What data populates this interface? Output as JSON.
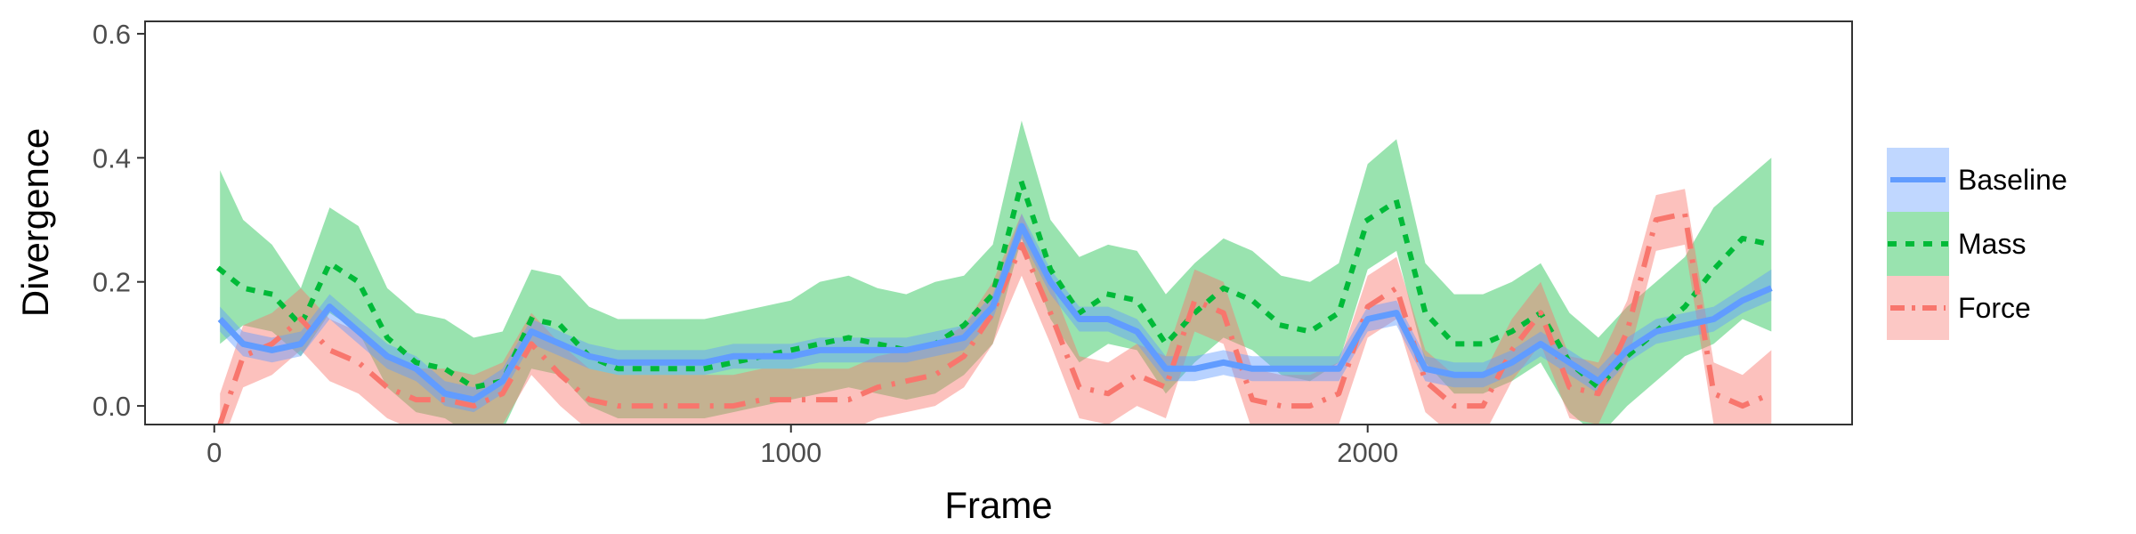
{
  "chart_data": {
    "type": "line",
    "xlabel": "Frame",
    "ylabel": "Divergence",
    "xlim": [
      -120,
      2840
    ],
    "ylim": [
      -0.03,
      0.62
    ],
    "xticks": [
      0,
      1000,
      2000
    ],
    "xtick_labels": [
      "0",
      "1000",
      "2000"
    ],
    "yticks": [
      0.0,
      0.2,
      0.4,
      0.6
    ],
    "ytick_labels": [
      "0.0",
      "0.2",
      "0.4",
      "0.6"
    ],
    "grid": false,
    "legend_position": "right",
    "x": [
      10,
      50,
      100,
      150,
      200,
      250,
      300,
      350,
      400,
      450,
      500,
      550,
      600,
      650,
      700,
      750,
      800,
      850,
      900,
      950,
      1000,
      1050,
      1100,
      1150,
      1200,
      1250,
      1300,
      1350,
      1400,
      1450,
      1500,
      1550,
      1600,
      1650,
      1700,
      1750,
      1800,
      1850,
      1900,
      1950,
      2000,
      2050,
      2100,
      2150,
      2200,
      2250,
      2300,
      2350,
      2400,
      2450,
      2500,
      2550,
      2600,
      2650,
      2700
    ],
    "series": [
      {
        "name": "Baseline",
        "color": "#619cff",
        "linestyle": "solid",
        "values": [
          0.14,
          0.1,
          0.09,
          0.1,
          0.16,
          0.12,
          0.08,
          0.06,
          0.02,
          0.01,
          0.04,
          0.12,
          0.1,
          0.08,
          0.07,
          0.07,
          0.07,
          0.07,
          0.08,
          0.08,
          0.08,
          0.09,
          0.09,
          0.09,
          0.09,
          0.1,
          0.11,
          0.16,
          0.29,
          0.2,
          0.14,
          0.14,
          0.12,
          0.06,
          0.06,
          0.07,
          0.06,
          0.06,
          0.06,
          0.06,
          0.14,
          0.15,
          0.06,
          0.05,
          0.05,
          0.07,
          0.1,
          0.07,
          0.04,
          0.09,
          0.12,
          0.13,
          0.14,
          0.17,
          0.19
        ],
        "lower": [
          0.12,
          0.08,
          0.07,
          0.08,
          0.14,
          0.1,
          0.06,
          0.04,
          0.0,
          -0.01,
          0.02,
          0.1,
          0.08,
          0.06,
          0.05,
          0.05,
          0.05,
          0.05,
          0.06,
          0.06,
          0.06,
          0.07,
          0.07,
          0.07,
          0.07,
          0.08,
          0.09,
          0.14,
          0.27,
          0.18,
          0.12,
          0.12,
          0.1,
          0.04,
          0.04,
          0.05,
          0.04,
          0.04,
          0.04,
          0.04,
          0.12,
          0.13,
          0.04,
          0.03,
          0.03,
          0.05,
          0.08,
          0.05,
          0.02,
          0.07,
          0.1,
          0.11,
          0.12,
          0.15,
          0.17
        ],
        "upper": [
          0.16,
          0.12,
          0.11,
          0.12,
          0.18,
          0.14,
          0.1,
          0.08,
          0.04,
          0.03,
          0.06,
          0.14,
          0.12,
          0.1,
          0.09,
          0.09,
          0.09,
          0.09,
          0.1,
          0.1,
          0.1,
          0.11,
          0.11,
          0.11,
          0.11,
          0.12,
          0.13,
          0.18,
          0.31,
          0.22,
          0.16,
          0.16,
          0.14,
          0.08,
          0.08,
          0.09,
          0.08,
          0.08,
          0.08,
          0.08,
          0.16,
          0.17,
          0.08,
          0.07,
          0.07,
          0.09,
          0.12,
          0.09,
          0.06,
          0.11,
          0.14,
          0.15,
          0.16,
          0.19,
          0.22
        ]
      },
      {
        "name": "Mass",
        "color": "#00ba38",
        "linestyle": "dotted",
        "values": [
          0.22,
          0.19,
          0.18,
          0.13,
          0.23,
          0.2,
          0.11,
          0.07,
          0.06,
          0.03,
          0.04,
          0.14,
          0.13,
          0.08,
          0.06,
          0.06,
          0.06,
          0.06,
          0.07,
          0.08,
          0.09,
          0.1,
          0.11,
          0.1,
          0.09,
          0.1,
          0.13,
          0.18,
          0.36,
          0.22,
          0.15,
          0.18,
          0.17,
          0.1,
          0.15,
          0.19,
          0.17,
          0.13,
          0.12,
          0.15,
          0.3,
          0.33,
          0.15,
          0.1,
          0.1,
          0.12,
          0.15,
          0.07,
          0.03,
          0.08,
          0.12,
          0.16,
          0.22,
          0.27,
          0.26
        ],
        "lower": [
          0.1,
          0.13,
          0.12,
          0.08,
          0.15,
          0.12,
          0.03,
          -0.01,
          -0.02,
          -0.05,
          -0.04,
          0.06,
          0.05,
          0.0,
          -0.02,
          -0.02,
          -0.02,
          -0.02,
          -0.01,
          0.0,
          0.01,
          0.02,
          0.03,
          0.02,
          0.01,
          0.02,
          0.05,
          0.1,
          0.27,
          0.14,
          0.07,
          0.1,
          0.09,
          0.02,
          0.07,
          0.11,
          0.09,
          0.05,
          0.04,
          0.07,
          0.22,
          0.25,
          0.07,
          0.02,
          0.02,
          0.04,
          0.07,
          -0.01,
          -0.05,
          0.0,
          0.04,
          0.08,
          0.1,
          0.14,
          0.12
        ],
        "upper": [
          0.38,
          0.3,
          0.26,
          0.19,
          0.32,
          0.29,
          0.19,
          0.15,
          0.14,
          0.11,
          0.12,
          0.22,
          0.21,
          0.16,
          0.14,
          0.14,
          0.14,
          0.14,
          0.15,
          0.16,
          0.17,
          0.2,
          0.21,
          0.19,
          0.18,
          0.2,
          0.21,
          0.26,
          0.46,
          0.3,
          0.24,
          0.26,
          0.25,
          0.18,
          0.23,
          0.27,
          0.25,
          0.21,
          0.2,
          0.23,
          0.39,
          0.43,
          0.23,
          0.18,
          0.18,
          0.2,
          0.23,
          0.15,
          0.11,
          0.16,
          0.2,
          0.24,
          0.32,
          0.36,
          0.4
        ]
      },
      {
        "name": "Force",
        "color": "#f8766d",
        "linestyle": "dashdot",
        "values": [
          -0.03,
          0.08,
          0.1,
          0.14,
          0.09,
          0.07,
          0.03,
          0.01,
          0.01,
          0.0,
          0.02,
          0.1,
          0.05,
          0.01,
          0.0,
          0.0,
          0.0,
          0.0,
          0.0,
          0.01,
          0.01,
          0.01,
          0.01,
          0.03,
          0.04,
          0.05,
          0.08,
          0.15,
          0.26,
          0.15,
          0.03,
          0.02,
          0.05,
          0.03,
          0.17,
          0.15,
          0.01,
          0.0,
          0.0,
          0.02,
          0.16,
          0.19,
          0.04,
          0.0,
          0.0,
          0.09,
          0.15,
          0.03,
          0.02,
          0.12,
          0.3,
          0.31,
          0.02,
          0.0,
          0.02
        ],
        "lower": [
          -0.07,
          0.03,
          0.05,
          0.09,
          0.04,
          0.02,
          -0.02,
          -0.04,
          -0.04,
          -0.05,
          -0.03,
          0.05,
          0.0,
          -0.04,
          -0.05,
          -0.05,
          -0.05,
          -0.05,
          -0.05,
          -0.04,
          -0.04,
          -0.04,
          -0.04,
          -0.02,
          -0.01,
          0.0,
          0.03,
          0.1,
          0.21,
          0.1,
          -0.02,
          -0.03,
          0.0,
          -0.02,
          0.12,
          0.1,
          -0.04,
          -0.05,
          -0.05,
          -0.03,
          0.11,
          0.14,
          -0.01,
          -0.05,
          -0.05,
          0.04,
          0.1,
          -0.02,
          -0.03,
          0.07,
          0.25,
          0.26,
          -0.03,
          -0.05,
          -0.03
        ],
        "upper": [
          0.02,
          0.13,
          0.15,
          0.19,
          0.14,
          0.12,
          0.08,
          0.06,
          0.06,
          0.05,
          0.07,
          0.15,
          0.1,
          0.06,
          0.05,
          0.05,
          0.05,
          0.05,
          0.05,
          0.06,
          0.06,
          0.06,
          0.06,
          0.08,
          0.09,
          0.1,
          0.13,
          0.2,
          0.31,
          0.2,
          0.08,
          0.07,
          0.1,
          0.08,
          0.22,
          0.2,
          0.06,
          0.05,
          0.05,
          0.07,
          0.21,
          0.24,
          0.09,
          0.05,
          0.05,
          0.14,
          0.2,
          0.08,
          0.07,
          0.17,
          0.34,
          0.35,
          0.07,
          0.05,
          0.09
        ]
      }
    ]
  }
}
